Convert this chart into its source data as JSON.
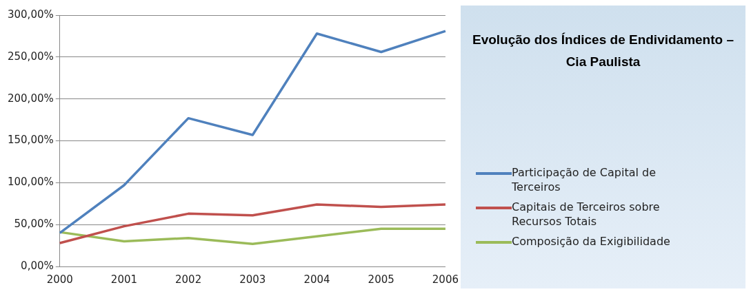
{
  "chart_data": {
    "type": "line",
    "title": "Evolução dos Índices de Endividamento – Cia Paulista",
    "categories": [
      "2000",
      "2001",
      "2002",
      "2003",
      "2004",
      "2005",
      "2006"
    ],
    "series": [
      {
        "name": "Participação de Capital de Terceiros",
        "color": "#4f81bd",
        "values": [
          40,
          97,
          177,
          157,
          278,
          256,
          281
        ]
      },
      {
        "name": "Capitais de Terceiros sobre Recursos Totais",
        "color": "#c0504d",
        "values": [
          28,
          48,
          63,
          61,
          74,
          71,
          74
        ]
      },
      {
        "name": "Composição da Exigibilidade",
        "color": "#9bbb59",
        "values": [
          41,
          30,
          34,
          27,
          36,
          45,
          45
        ]
      }
    ],
    "ylim": [
      0,
      300
    ],
    "yticks": [
      {
        "value": 0,
        "label": "0,00%"
      },
      {
        "value": 50,
        "label": "50,00%"
      },
      {
        "value": 100,
        "label": "100,00%"
      },
      {
        "value": 150,
        "label": "150,00%"
      },
      {
        "value": 200,
        "label": "200,00%"
      },
      {
        "value": 250,
        "label": "250,00%"
      },
      {
        "value": 300,
        "label": "300,00%"
      }
    ],
    "grid": "y",
    "legend": "right",
    "marker": "none",
    "line_style": "solid"
  }
}
